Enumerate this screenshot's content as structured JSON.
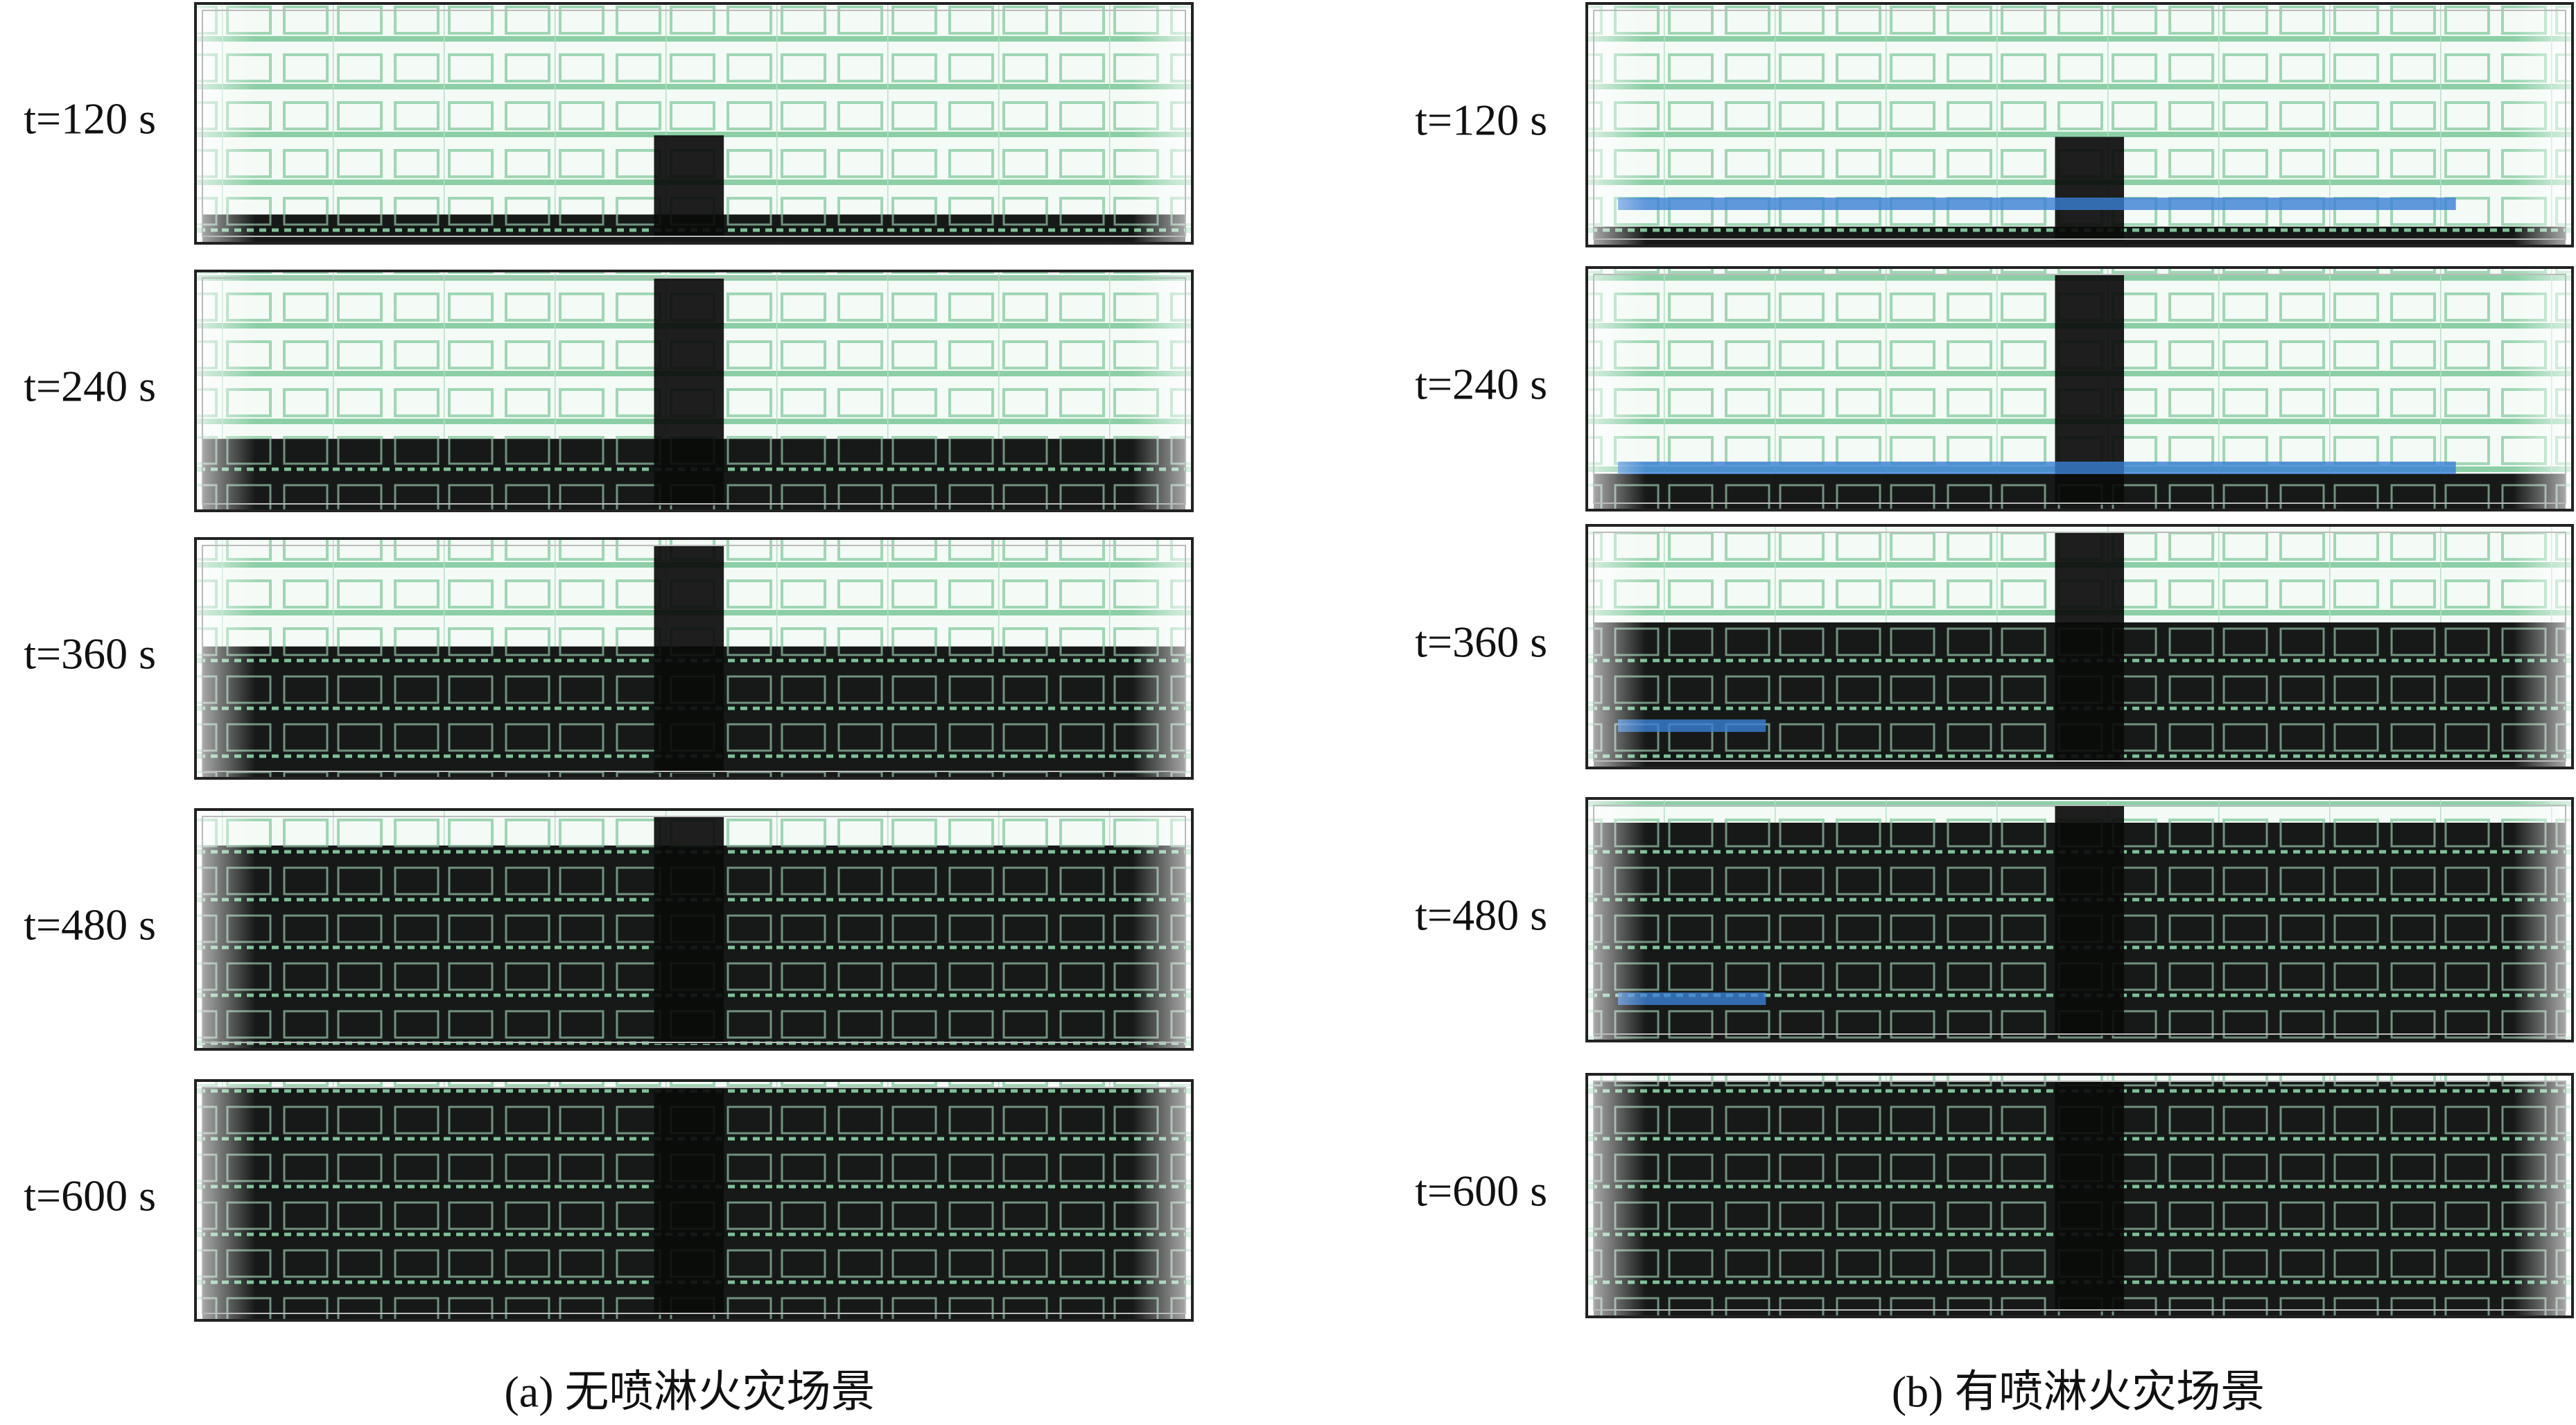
{
  "panels": [
    {
      "caption": "(a) 无喷淋火灾场景",
      "frames": [
        "t=120 s",
        "t=240 s",
        "t=360 s",
        "t=480 s",
        "t=600 s"
      ]
    },
    {
      "caption": "(b) 有喷淋火灾场景",
      "frames": [
        "t=120 s",
        "t=240 s",
        "t=360 s",
        "t=480 s",
        "t=600 s"
      ]
    }
  ]
}
